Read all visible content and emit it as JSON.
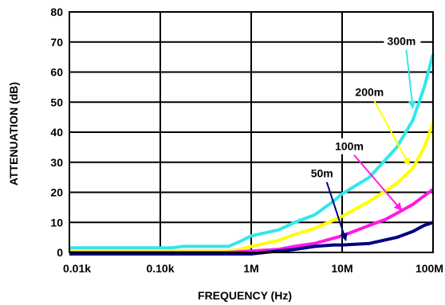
{
  "chart_data": {
    "type": "line",
    "title": "",
    "xlabel": "FREQUENCY (Hz)",
    "ylabel": "ATTENUATION (dB)",
    "x_scale": "log",
    "x_ticks": [
      {
        "value": 10,
        "label": "0.01k"
      },
      {
        "value": 100,
        "label": "0.10k"
      },
      {
        "value": 1000000,
        "label": "1M"
      },
      {
        "value": 10000000,
        "label": "10M"
      },
      {
        "value": 100000000,
        "label": "100M"
      }
    ],
    "y_ticks": [
      0,
      10,
      20,
      30,
      40,
      50,
      60,
      70,
      80
    ],
    "ylim": [
      0,
      80
    ],
    "grid": true,
    "legend": "none",
    "series": [
      {
        "name": "300m",
        "color": "#33e6ea",
        "x": [
          10,
          30,
          60,
          100,
          200,
          300,
          1000,
          3000,
          10000,
          30000,
          100000,
          200000,
          400000,
          1000000,
          2000000,
          3000000,
          5000000,
          8000000,
          10000000,
          20000000,
          40000000,
          60000000,
          80000000,
          100000000
        ],
        "values": [
          1.5,
          1.5,
          1.5,
          1.5,
          1.5,
          1.5,
          2,
          2,
          2,
          2,
          2,
          3,
          4,
          5.5,
          7.5,
          10,
          12.5,
          17,
          19.5,
          25,
          35,
          44,
          55,
          66
        ]
      },
      {
        "name": "200m",
        "color": "#ffff00",
        "x": [
          10,
          100,
          1000,
          10000,
          100000,
          300000,
          1000000,
          2000000,
          3000000,
          5000000,
          10000000,
          20000000,
          40000000,
          60000000,
          80000000,
          100000000
        ],
        "values": [
          0.5,
          0.5,
          0.5,
          0.5,
          0.5,
          1,
          2,
          4,
          6,
          8,
          12,
          17,
          23,
          28,
          35,
          43
        ]
      },
      {
        "name": "100m",
        "color": "#ff19e6",
        "x": [
          10,
          100,
          1000,
          10000,
          100000,
          1000000,
          2000000,
          3000000,
          5000000,
          10000000,
          20000000,
          30000000,
          40000000,
          60000000,
          100000000
        ],
        "values": [
          0,
          0,
          0,
          0,
          0,
          0.5,
          1,
          2,
          3,
          5.5,
          9,
          11,
          13,
          16,
          21
        ]
      },
      {
        "name": "50m",
        "color": "#000080",
        "x": [
          10,
          100,
          1000,
          10000,
          100000,
          300000,
          1000000,
          2000000,
          3000000,
          5000000,
          8000000,
          10000000,
          20000000,
          40000000,
          60000000,
          80000000,
          100000000
        ],
        "values": [
          -0.5,
          -0.5,
          -0.5,
          -0.5,
          -0.5,
          -0.5,
          -0.5,
          0.5,
          1,
          2,
          2.5,
          2.5,
          3,
          5,
          7,
          9,
          10
        ]
      }
    ],
    "annotations": [
      {
        "text": "300m",
        "label_x": 45000000,
        "label_y": 69,
        "arrow_to_x": 60000000,
        "arrow_to_y": 48
      },
      {
        "text": "200m",
        "label_x": 20000000,
        "label_y": 52,
        "arrow_to_x": 55000000,
        "arrow_to_y": 29
      },
      {
        "text": "100m",
        "label_x": 12000000,
        "label_y": 34,
        "arrow_to_x": 45000000,
        "arrow_to_y": 14
      },
      {
        "text": "50m",
        "label_x": 6000000,
        "label_y": 25,
        "arrow_to_x": 11000000,
        "arrow_to_y": 4
      }
    ]
  }
}
